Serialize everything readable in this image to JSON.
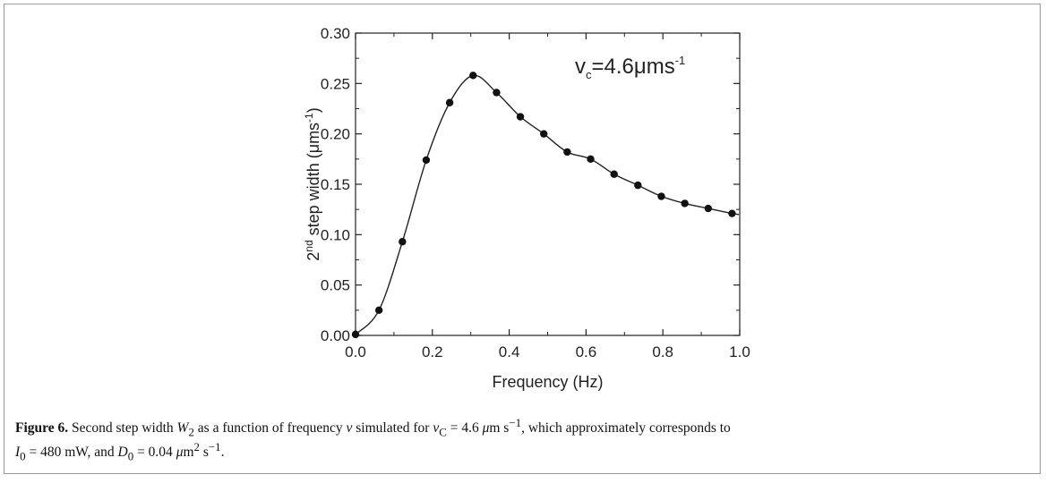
{
  "caption": {
    "label": "Figure 6.",
    "part1": " Second step width ",
    "part2": " as a function of frequency ",
    "part3": " simulated for ",
    "part4": ", which approximately corresponds to",
    "part5": ", and ",
    "part6": ".",
    "w2": "W",
    "w2_sub": "2",
    "nu": "ν",
    "vc_expr": "v",
    "vc_sub": "C",
    "vc_value": " = 4.6 ",
    "mu1": "μ",
    "vc_unit": "m s",
    "vc_unit_exp": "−1",
    "i0_sym": "I",
    "i0_sub": "0",
    "i0_value": " = 480 mW",
    "d0_sym": "D",
    "d0_sub": "0",
    "d0_value": " = 0.04 ",
    "mu2": "μ",
    "d0_unit": "m",
    "d0_unit_exp": "2",
    "d0_unit2": " s",
    "d0_unit2_exp": "−1"
  },
  "chart_data": {
    "type": "line",
    "xlabel": "Frequency (Hz)",
    "ylabel_sup": "nd",
    "ylabel_pre": "2",
    "ylabel_main": " step width (μms",
    "ylabel_exp": "-1",
    "ylabel_end": ")",
    "annotation_main": "v",
    "annotation_sub": "c",
    "annotation_value": "=4.6μms",
    "annotation_exp": "-1",
    "xlim": [
      0.0,
      1.0
    ],
    "ylim": [
      0.0,
      0.3
    ],
    "x_ticks": [
      "0.0",
      "0.2",
      "0.4",
      "0.6",
      "0.8",
      "1.0"
    ],
    "x_tick_values": [
      0.0,
      0.2,
      0.4,
      0.6,
      0.8,
      1.0
    ],
    "y_ticks": [
      "0.00",
      "0.05",
      "0.10",
      "0.15",
      "0.20",
      "0.25",
      "0.30"
    ],
    "y_tick_values": [
      0.0,
      0.05,
      0.1,
      0.15,
      0.2,
      0.25,
      0.3
    ],
    "grid": false,
    "series": [
      {
        "points": [
          {
            "x": 0.0,
            "y": 0.001
          },
          {
            "x": 0.061,
            "y": 0.025
          },
          {
            "x": 0.122,
            "y": 0.093
          },
          {
            "x": 0.184,
            "y": 0.174
          },
          {
            "x": 0.245,
            "y": 0.231
          },
          {
            "x": 0.306,
            "y": 0.258
          },
          {
            "x": 0.367,
            "y": 0.241
          },
          {
            "x": 0.429,
            "y": 0.217
          },
          {
            "x": 0.49,
            "y": 0.2
          },
          {
            "x": 0.551,
            "y": 0.182
          },
          {
            "x": 0.612,
            "y": 0.175
          },
          {
            "x": 0.673,
            "y": 0.16
          },
          {
            "x": 0.735,
            "y": 0.149
          },
          {
            "x": 0.796,
            "y": 0.138
          },
          {
            "x": 0.857,
            "y": 0.131
          },
          {
            "x": 0.918,
            "y": 0.126
          },
          {
            "x": 0.98,
            "y": 0.121
          }
        ]
      }
    ]
  }
}
